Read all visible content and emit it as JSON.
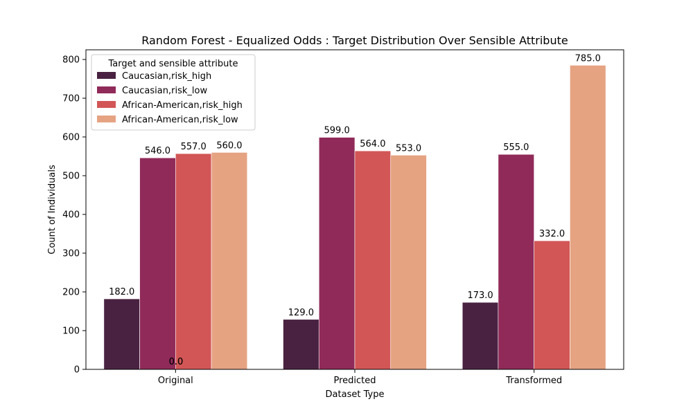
{
  "chart_data": {
    "type": "bar",
    "title": "Random Forest - Equalized Odds : Target Distribution Over Sensible Attribute",
    "xlabel": "Dataset Type",
    "ylabel": "Count of Individuals",
    "categories": [
      "Original",
      "Predicted",
      "Transformed"
    ],
    "ylim": [
      0,
      825
    ],
    "yticks": [
      0,
      100,
      200,
      300,
      400,
      500,
      600,
      700,
      800
    ],
    "grid": false,
    "legend": {
      "title": "Target and sensible attribute",
      "placement": "top-left"
    },
    "series": [
      {
        "name": "Caucasian,risk_high",
        "color": "#4a2241",
        "values": [
          182.0,
          129.0,
          173.0
        ]
      },
      {
        "name": "Caucasian,risk_low",
        "color": "#902a59",
        "values": [
          546.0,
          599.0,
          555.0
        ]
      },
      {
        "name": "African-American,risk_high",
        "color": "#d25656",
        "values": [
          557.0,
          564.0,
          332.0
        ]
      },
      {
        "name": "African-American,risk_low",
        "color": "#e5a382",
        "values": [
          560.0,
          553.0,
          785.0
        ]
      }
    ],
    "extra_annotations": [
      "0.0",
      "0.0"
    ]
  }
}
